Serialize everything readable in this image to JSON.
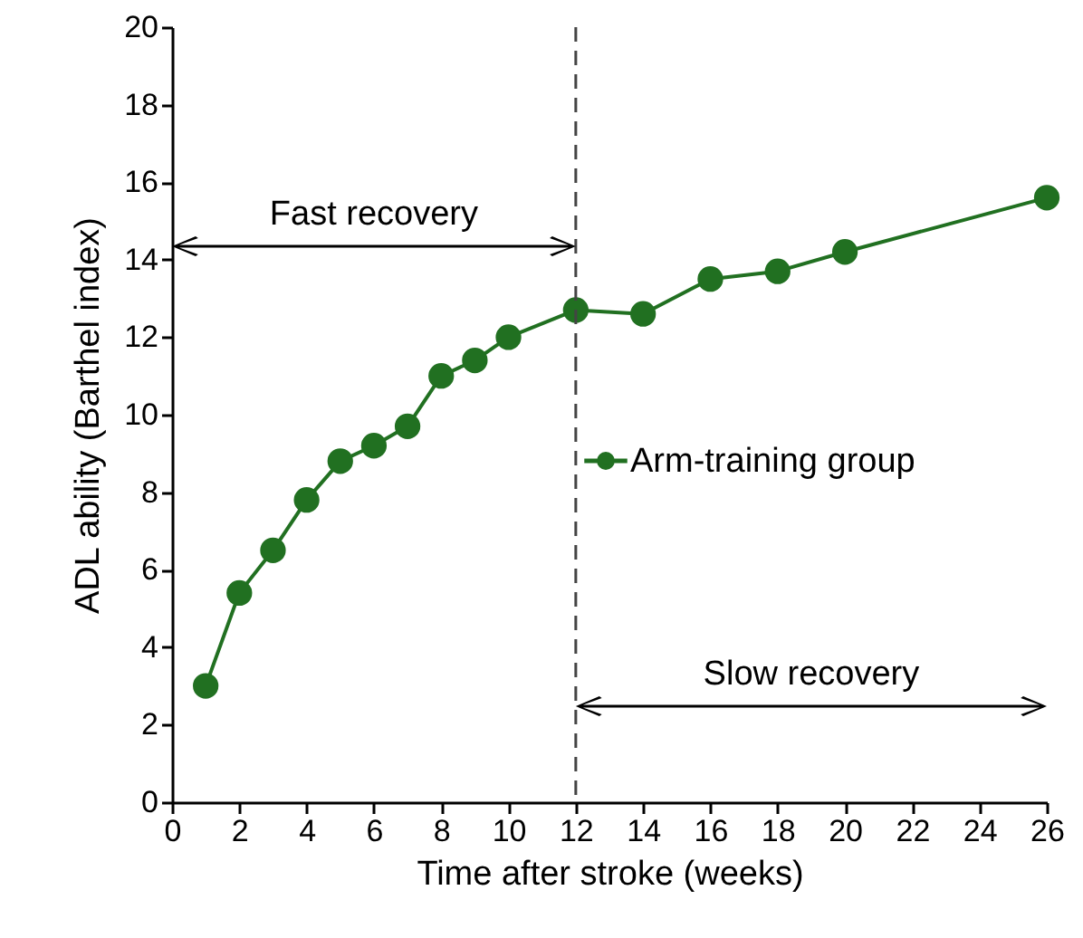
{
  "chart_data": {
    "type": "line",
    "xlabel": "Time after stroke (weeks)",
    "ylabel": "ADL ability (Barthel index)",
    "x": [
      1,
      2,
      3,
      4,
      5,
      6,
      7,
      8,
      9,
      10,
      12,
      14,
      16,
      18,
      20,
      26
    ],
    "series": [
      {
        "name": "Arm-training group",
        "color": "#217021",
        "values": [
          3.0,
          5.4,
          6.5,
          7.8,
          8.8,
          9.2,
          9.7,
          11.0,
          11.4,
          12.0,
          12.7,
          12.6,
          13.5,
          13.7,
          14.2,
          15.6
        ]
      }
    ],
    "xlim": [
      0,
      26
    ],
    "xticks": [
      0,
      2,
      4,
      6,
      8,
      10,
      12,
      14,
      16,
      18,
      20,
      22,
      24,
      26
    ],
    "ylim": [
      0,
      20
    ],
    "yticks": [
      0,
      2,
      4,
      6,
      8,
      10,
      12,
      14,
      16,
      18,
      20
    ],
    "ref_lines": [
      {
        "axis": "x",
        "value": 12,
        "color": "#444444",
        "line_style": "dashed"
      }
    ],
    "annotations": [
      "Fast recovery",
      "Slow recovery"
    ],
    "marker": "circle",
    "line_style": "solid",
    "grid": false,
    "legend": "right"
  }
}
